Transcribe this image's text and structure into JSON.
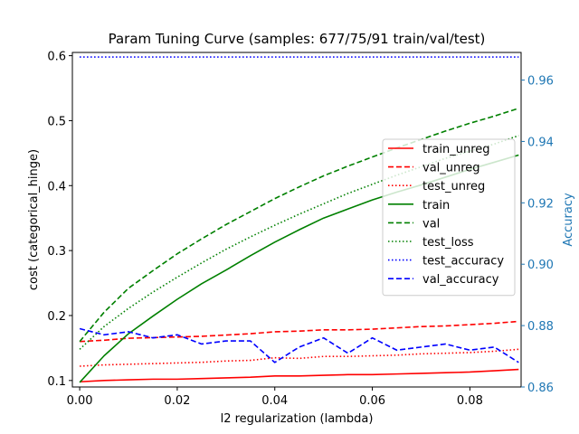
{
  "chart_data": {
    "type": "line",
    "title": "Param Tuning Curve (samples: 677/75/91 train/val/test)",
    "xlabel": "l2 regularization (lambda)",
    "ylabel": "cost (categorical_hinge)",
    "ylabel_right": "Accuracy",
    "xlim": [
      -0.0015,
      0.0905
    ],
    "ylim": [
      0.09,
      0.605
    ],
    "ylim_right": [
      0.86,
      0.969
    ],
    "x_ticks": [
      0.0,
      0.02,
      0.04,
      0.06,
      0.08
    ],
    "x_tick_labels": [
      "0.00",
      "0.02",
      "0.04",
      "0.06",
      "0.08"
    ],
    "y_ticks": [
      0.1,
      0.2,
      0.3,
      0.4,
      0.5,
      0.6
    ],
    "y_tick_labels": [
      "0.1",
      "0.2",
      "0.3",
      "0.4",
      "0.5",
      "0.6"
    ],
    "y_ticks_right": [
      0.86,
      0.88,
      0.9,
      0.92,
      0.94,
      0.96
    ],
    "y_tick_labels_right": [
      "0.86",
      "0.88",
      "0.90",
      "0.92",
      "0.94",
      "0.96"
    ],
    "right_axis_color": "#1f77b4",
    "grid": false,
    "legend_position": "center-right",
    "x": [
      0.0,
      0.005,
      0.01,
      0.015,
      0.02,
      0.025,
      0.03,
      0.035,
      0.04,
      0.045,
      0.05,
      0.055,
      0.06,
      0.065,
      0.07,
      0.075,
      0.08,
      0.085,
      0.09
    ],
    "series": [
      {
        "name": "train_unreg",
        "axis": "left",
        "color": "#ff0000",
        "dash": "solid",
        "values": [
          0.098,
          0.1,
          0.101,
          0.102,
          0.102,
          0.103,
          0.104,
          0.105,
          0.107,
          0.107,
          0.108,
          0.109,
          0.109,
          0.11,
          0.111,
          0.112,
          0.113,
          0.115,
          0.117
        ]
      },
      {
        "name": "val_unreg",
        "axis": "left",
        "color": "#ff0000",
        "dash": "dashed",
        "values": [
          0.16,
          0.162,
          0.165,
          0.166,
          0.167,
          0.168,
          0.17,
          0.172,
          0.175,
          0.176,
          0.178,
          0.178,
          0.179,
          0.181,
          0.183,
          0.184,
          0.186,
          0.188,
          0.191
        ]
      },
      {
        "name": "test_unreg",
        "axis": "left",
        "color": "#ff0000",
        "dash": "dotted",
        "values": [
          0.122,
          0.124,
          0.125,
          0.126,
          0.127,
          0.128,
          0.13,
          0.131,
          0.135,
          0.134,
          0.137,
          0.137,
          0.138,
          0.139,
          0.141,
          0.142,
          0.143,
          0.145,
          0.148
        ]
      },
      {
        "name": "train",
        "axis": "left",
        "color": "#008000",
        "dash": "solid",
        "values": [
          0.097,
          0.138,
          0.172,
          0.199,
          0.225,
          0.249,
          0.27,
          0.292,
          0.313,
          0.332,
          0.35,
          0.364,
          0.378,
          0.39,
          0.401,
          0.413,
          0.425,
          0.436,
          0.447
        ]
      },
      {
        "name": "val",
        "axis": "left",
        "color": "#008000",
        "dash": "dashed",
        "values": [
          0.16,
          0.205,
          0.242,
          0.269,
          0.295,
          0.318,
          0.34,
          0.36,
          0.38,
          0.398,
          0.415,
          0.43,
          0.444,
          0.458,
          0.471,
          0.484,
          0.496,
          0.507,
          0.519
        ]
      },
      {
        "name": "test_loss",
        "axis": "left",
        "color": "#008000",
        "dash": "dotted",
        "values": [
          0.148,
          0.183,
          0.211,
          0.236,
          0.259,
          0.281,
          0.302,
          0.321,
          0.339,
          0.356,
          0.372,
          0.388,
          0.402,
          0.416,
          0.429,
          0.442,
          0.453,
          0.464,
          0.477
        ]
      },
      {
        "name": "test_accuracy",
        "axis": "right",
        "color": "#0000ff",
        "dash": "dotted",
        "values": [
          0.9675,
          0.9675,
          0.9675,
          0.9675,
          0.9675,
          0.9675,
          0.9675,
          0.9675,
          0.9675,
          0.9675,
          0.9675,
          0.9675,
          0.9675,
          0.9675,
          0.9675,
          0.9675,
          0.9675,
          0.9675,
          0.9675
        ]
      },
      {
        "name": "val_accuracy",
        "axis": "right",
        "color": "#0000ff",
        "dash": "dashed",
        "values": [
          0.879,
          0.877,
          0.878,
          0.876,
          0.877,
          0.874,
          0.875,
          0.875,
          0.868,
          0.873,
          0.876,
          0.871,
          0.876,
          0.872,
          0.873,
          0.874,
          0.872,
          0.873,
          0.868
        ]
      }
    ]
  }
}
